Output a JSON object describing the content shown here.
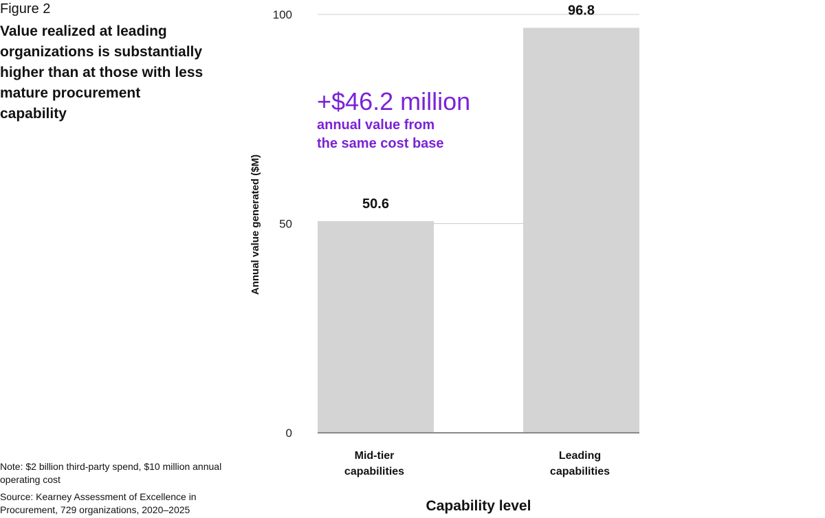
{
  "figure_label": "Figure 2",
  "figure_title": "Value realized at leading organizations is substantially higher than at those with less mature procurement capability",
  "note": "Note: $2 billion third-party spend, $10 million annual operating cost",
  "source": "Source: Kearney Assessment of Excellence in Procurement, 729 organizations, 2020–2025",
  "annotation": {
    "headline": "+$46.2 million",
    "line1": "annual value from",
    "line2": "the same cost base",
    "color": "#7b22d6"
  },
  "colors": {
    "bar": "#d4d4d4",
    "grid": "#cccccc",
    "baseline": "#888888"
  },
  "chart_data": {
    "type": "bar",
    "categories": [
      [
        "Mid-tier",
        "capabilities"
      ],
      [
        "Leading",
        "capabilities"
      ]
    ],
    "values": [
      50.6,
      96.8
    ],
    "value_labels": [
      "50.6",
      "96.8"
    ],
    "ylim": [
      0,
      100
    ],
    "yticks": [
      0,
      50,
      100
    ],
    "ylabel": "Annual value generated ($M)",
    "xlabel": "Capability level",
    "grid": true
  }
}
